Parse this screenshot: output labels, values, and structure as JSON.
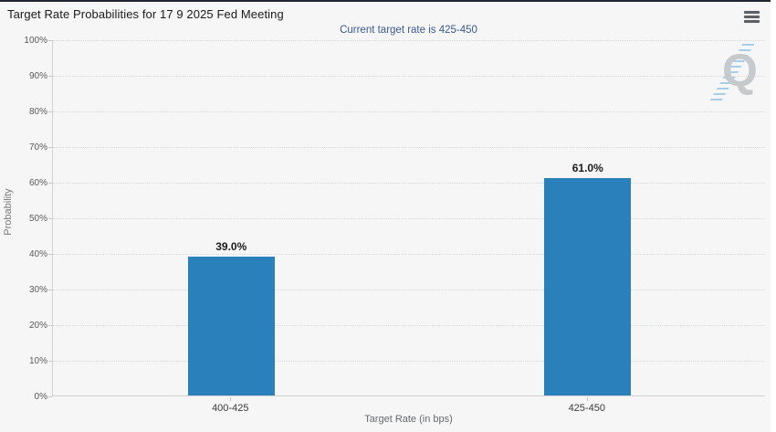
{
  "header": {
    "menu_icon": "hamburger-menu-icon"
  },
  "chart_data": {
    "type": "bar",
    "title": "Target Rate Probabilities for 17 9 2025 Fed Meeting",
    "subtitle": "Current target rate is 425-450",
    "categories": [
      "400-425",
      "425-450"
    ],
    "values": [
      39.0,
      61.0
    ],
    "data_labels": [
      "39.0%",
      "61.0%"
    ],
    "xlabel": "Target Rate (in bps)",
    "ylabel": "Probability",
    "ylim": [
      0,
      100
    ],
    "ytick_step": 10,
    "ytick_labels": [
      "0%",
      "10%",
      "20%",
      "30%",
      "40%",
      "50%",
      "60%",
      "70%",
      "80%",
      "90%",
      "100%"
    ],
    "grid": "horizontal-dotted",
    "legend": "none",
    "bar_color": "#2a80ba"
  },
  "watermark": {
    "letter": "Q"
  },
  "colors": {
    "background": "#f6f6f7",
    "top_border": "#1e2530",
    "bar": "#2a80ba",
    "subtitle_text": "#3b5a8f",
    "axis_line": "#d2d2d4",
    "grid_line": "#d7d7da",
    "tick_label": "#5a5a5a",
    "title_text": "#1b1b1b",
    "data_label": "#1c1c1c"
  }
}
